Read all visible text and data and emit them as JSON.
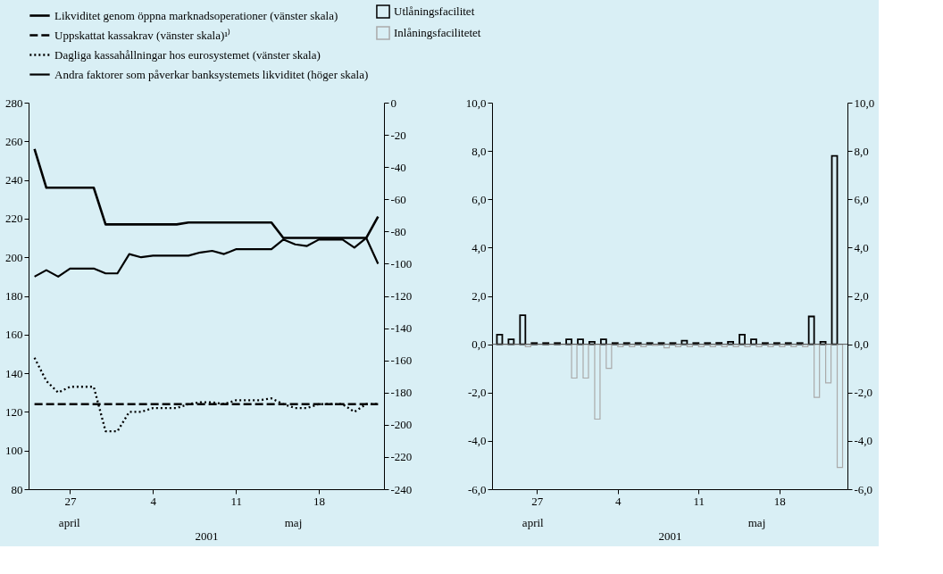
{
  "chart_data": [
    {
      "type": "line",
      "xlabel": "2001",
      "annotations": [
        "april",
        "maj"
      ],
      "legend": "top",
      "grid": false,
      "x": [
        "2001-04-24",
        "2001-04-25",
        "2001-04-26",
        "2001-04-27",
        "2001-04-28",
        "2001-04-29",
        "2001-04-30",
        "2001-05-01",
        "2001-05-02",
        "2001-05-03",
        "2001-05-04",
        "2001-05-05",
        "2001-05-06",
        "2001-05-07",
        "2001-05-08",
        "2001-05-09",
        "2001-05-10",
        "2001-05-11",
        "2001-05-12",
        "2001-05-13",
        "2001-05-14",
        "2001-05-15",
        "2001-05-16",
        "2001-05-17",
        "2001-05-18",
        "2001-05-19",
        "2001-05-20",
        "2001-05-21",
        "2001-05-22",
        "2001-05-23"
      ],
      "xlim": [
        "2001-04-23T12:00",
        "2001-05-23T12:00"
      ],
      "xticks": [
        {
          "value": "2001-04-27",
          "label": "27"
        },
        {
          "value": "2001-05-04",
          "label": "4"
        },
        {
          "value": "2001-05-11",
          "label": "11"
        },
        {
          "value": "2001-05-18",
          "label": "18"
        }
      ],
      "ylim": [
        80,
        280
      ],
      "yticks": [
        80,
        100,
        120,
        140,
        160,
        180,
        200,
        220,
        240,
        260,
        280
      ],
      "y2lim": [
        -240,
        0
      ],
      "y2ticks": [
        -240,
        -220,
        -200,
        -180,
        -160,
        -140,
        -120,
        -100,
        -80,
        -60,
        -40,
        -20,
        0
      ],
      "series": [
        {
          "name": "Likviditet genom öppna marknadsoperationer (vänster skala)",
          "color": "#000000",
          "line_style": "solid",
          "axis": "y",
          "values": [
            256,
            236,
            236,
            236,
            236,
            236,
            217,
            217,
            217,
            217,
            217,
            217,
            217,
            218,
            218,
            218,
            218,
            218,
            218,
            218,
            218,
            210,
            210,
            210,
            210,
            210,
            210,
            210,
            210,
            221
          ]
        },
        {
          "name": "Uppskattat kassakrav (vänster skala)¹⁾",
          "color": "#000000",
          "line_style": "dashed",
          "axis": "y",
          "values": [
            124,
            124,
            124,
            124,
            124,
            124,
            124,
            124,
            124,
            124,
            124,
            124,
            124,
            124,
            124,
            124,
            124,
            124,
            124,
            124,
            124,
            124,
            124,
            124,
            124,
            124,
            124,
            124,
            124,
            124
          ]
        },
        {
          "name": "Dagliga kassahållningar hos eurosystemet (vänster skala)",
          "color": "#000000",
          "line_style": "dotted",
          "axis": "y",
          "values": [
            148,
            136,
            130,
            133,
            133,
            133,
            110,
            110,
            120,
            120,
            122,
            122,
            122,
            124,
            125,
            125,
            124,
            126,
            126,
            126,
            127,
            124,
            122,
            122,
            124,
            124,
            124,
            120,
            124,
            124
          ]
        },
        {
          "name": "Andra faktorer som påverkar banksystemets likviditet (höger skala)",
          "color": "#000000",
          "line_style": "solid",
          "axis": "y2",
          "values": [
            -108,
            -104,
            -108,
            -103,
            -103,
            -103,
            -106,
            -106,
            -94,
            -96,
            -95,
            -95,
            -95,
            -95,
            -93,
            -92,
            -94,
            -91,
            -91,
            -91,
            -91,
            -85,
            -88,
            -89,
            -85,
            -85,
            -85,
            -90,
            -84,
            -100
          ]
        }
      ]
    },
    {
      "type": "bar",
      "xlabel": "2001",
      "annotations": [
        "april",
        "maj"
      ],
      "legend": "top",
      "grid": false,
      "x": [
        "2001-04-24",
        "2001-04-25",
        "2001-04-26",
        "2001-04-27",
        "2001-04-28",
        "2001-04-29",
        "2001-04-30",
        "2001-05-01",
        "2001-05-02",
        "2001-05-03",
        "2001-05-04",
        "2001-05-05",
        "2001-05-06",
        "2001-05-07",
        "2001-05-08",
        "2001-05-09",
        "2001-05-10",
        "2001-05-11",
        "2001-05-12",
        "2001-05-13",
        "2001-05-14",
        "2001-05-15",
        "2001-05-16",
        "2001-05-17",
        "2001-05-18",
        "2001-05-19",
        "2001-05-20",
        "2001-05-21",
        "2001-05-22",
        "2001-05-23"
      ],
      "xlim": [
        "2001-04-23T12:00",
        "2001-05-23T12:00"
      ],
      "xticks": [
        {
          "value": "2001-04-27",
          "label": "27"
        },
        {
          "value": "2001-05-04",
          "label": "4"
        },
        {
          "value": "2001-05-11",
          "label": "11"
        },
        {
          "value": "2001-05-18",
          "label": "18"
        }
      ],
      "ylim": [
        -6,
        10
      ],
      "yticks": [
        {
          "value": -6,
          "label": "-6,0"
        },
        {
          "value": -4,
          "label": "-4,0"
        },
        {
          "value": -2,
          "label": "-2,0"
        },
        {
          "value": 0,
          "label": "0,0"
        },
        {
          "value": 2,
          "label": "2,0"
        },
        {
          "value": 4,
          "label": "4,0"
        },
        {
          "value": 6,
          "label": "6,0"
        },
        {
          "value": 8,
          "label": "8,0"
        },
        {
          "value": 10,
          "label": "10,0"
        }
      ],
      "y2lim": [
        -6,
        10
      ],
      "y2ticks": [
        {
          "value": -6,
          "label": "-6,0"
        },
        {
          "value": -4,
          "label": "-4,0"
        },
        {
          "value": -2,
          "label": "-2,0"
        },
        {
          "value": 0,
          "label": "0,0"
        },
        {
          "value": 2,
          "label": "2,0"
        },
        {
          "value": 4,
          "label": "4,0"
        },
        {
          "value": 6,
          "label": "6,0"
        },
        {
          "value": 8,
          "label": "8,0"
        },
        {
          "value": 10,
          "label": "10,0"
        }
      ],
      "ref_lines": [
        {
          "axis": "y",
          "value": 0,
          "color": "#555555"
        }
      ],
      "series": [
        {
          "name": "Utlåningsfacilitet",
          "color": "#000000",
          "values": [
            0.4,
            0.2,
            1.2,
            0.05,
            0.05,
            0.05,
            0.2,
            0.2,
            0.1,
            0.2,
            0.05,
            0.05,
            0.05,
            0.05,
            0.05,
            0.05,
            0.15,
            0.05,
            0.05,
            0.05,
            0.1,
            0.4,
            0.2,
            0.05,
            0.05,
            0.05,
            0.05,
            1.15,
            0.1,
            7.8
          ]
        },
        {
          "name": "Inlåningsfacilitetet",
          "color": "#aaaaaa",
          "values": [
            0,
            0,
            -0.1,
            0,
            0,
            0,
            -1.4,
            -1.4,
            -3.1,
            -1.0,
            -0.1,
            -0.1,
            -0.1,
            -0.05,
            -0.15,
            -0.1,
            -0.1,
            -0.1,
            -0.1,
            -0.1,
            -0.1,
            -0.1,
            -0.1,
            -0.1,
            -0.1,
            -0.1,
            -0.1,
            -2.2,
            -1.6,
            -5.1
          ]
        }
      ]
    }
  ]
}
